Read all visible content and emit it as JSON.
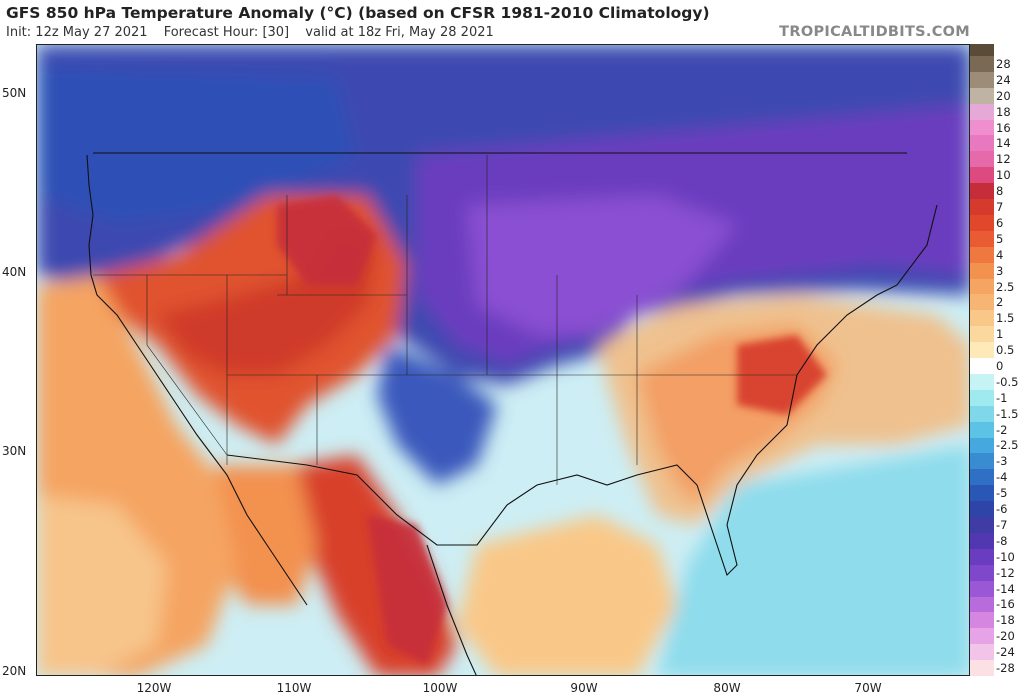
{
  "header": {
    "title": "GFS 850 hPa Temperature Anomaly (°C) (based on CFSR 1981-2010 Climatology)",
    "init": "Init: 12z May 27 2021",
    "forecast_hour": "Forecast Hour: [30]",
    "valid": "valid at 18z Fri, May 28 2021",
    "watermark": "TROPICALTIDBITS.COM"
  },
  "map": {
    "lat_labels": [
      "50N",
      "40N",
      "30N",
      "20N"
    ],
    "lon_labels": [
      "120W",
      "110W",
      "100W",
      "90W",
      "80W",
      "70W"
    ]
  },
  "colorbar": {
    "labels": [
      "28",
      "24",
      "20",
      "18",
      "16",
      "14",
      "12",
      "10",
      "8",
      "7",
      "6",
      "5",
      "4",
      "3",
      "2.5",
      "2",
      "1.5",
      "1",
      "0.5",
      "0",
      "-0.5",
      "-1",
      "-1.5",
      "-2",
      "-2.5",
      "-3",
      "-4",
      "-5",
      "-6",
      "-7",
      "-8",
      "-10",
      "-12",
      "-14",
      "-16",
      "-18",
      "-20",
      "-24",
      "-28"
    ],
    "colors": [
      "#7a6a55",
      "#9c8c78",
      "#bfb3a3",
      "#e6a8d6",
      "#f08fd0",
      "#e879c0",
      "#e66aa9",
      "#dd4a7f",
      "#c62d3a",
      "#d63a2c",
      "#e0472b",
      "#e85b33",
      "#ef7840",
      "#f3914f",
      "#f5a462",
      "#f7b574",
      "#f9c888",
      "#fbd99e",
      "#fdeab8",
      "#ffffff",
      "#c6f4f4",
      "#9eeaee",
      "#7ed8ea",
      "#5cc2e6",
      "#45a8de",
      "#3a8cd2",
      "#2f6fc4",
      "#2a56b6",
      "#2e44a8",
      "#3f3ca6",
      "#5238b0",
      "#6a3cbf",
      "#7e47cc",
      "#9a58d6",
      "#b86cdb",
      "#d486e0",
      "#e6a4e6",
      "#f2c4ea",
      "#fbe0e4"
    ]
  }
}
